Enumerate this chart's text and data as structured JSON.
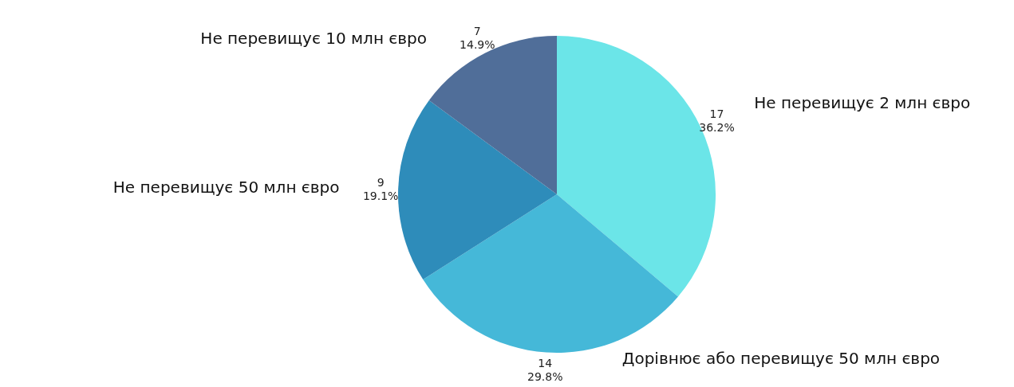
{
  "chart_data": {
    "type": "pie",
    "categories": [
      "Не перевищує 2 млн євро",
      "Дорівнює або перевищує 50 млн євро",
      "Не перевищує 50 млн євро",
      "Не перевищує 10 млн євро"
    ],
    "values": [
      17,
      14,
      9,
      7
    ],
    "value_labels": [
      "17\n36.2%",
      "14\n29.8%",
      "9\n19.1%",
      "7\n14.9%"
    ],
    "colors": [
      "#6be5e8",
      "#45b8d8",
      "#2e8cba",
      "#506e99"
    ]
  }
}
